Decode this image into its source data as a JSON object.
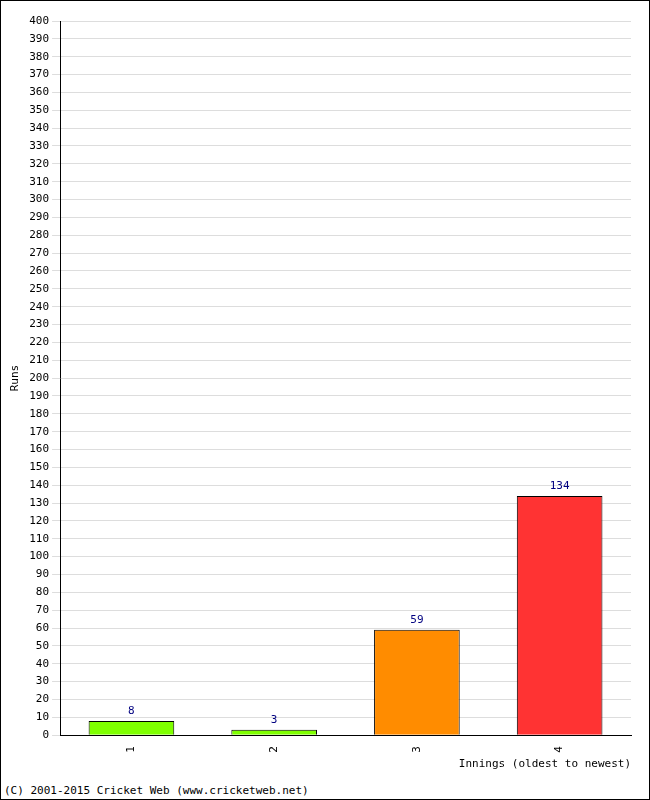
{
  "chart_data": {
    "type": "bar",
    "x_label": "Innings (oldest to newest)",
    "y_label": "Runs",
    "annotations": [
      "(C) 2001-2015 Cricket Web (www.cricketweb.net)"
    ],
    "categories": [
      "1",
      "2",
      "3",
      "4"
    ],
    "values": [
      8,
      3,
      59,
      134
    ],
    "colors": [
      "#7fff00",
      "#7fff00",
      "#ff8c00",
      "#ff3333"
    ],
    "ylim": [
      0,
      400
    ],
    "yticks": [
      0,
      10,
      20,
      30,
      40,
      50,
      60,
      70,
      80,
      90,
      100,
      110,
      120,
      130,
      140,
      150,
      160,
      170,
      180,
      190,
      200,
      210,
      220,
      230,
      240,
      250,
      260,
      270,
      280,
      290,
      300,
      310,
      320,
      330,
      340,
      350,
      360,
      370,
      380,
      390,
      400
    ],
    "grid": true,
    "data_labels": true
  }
}
